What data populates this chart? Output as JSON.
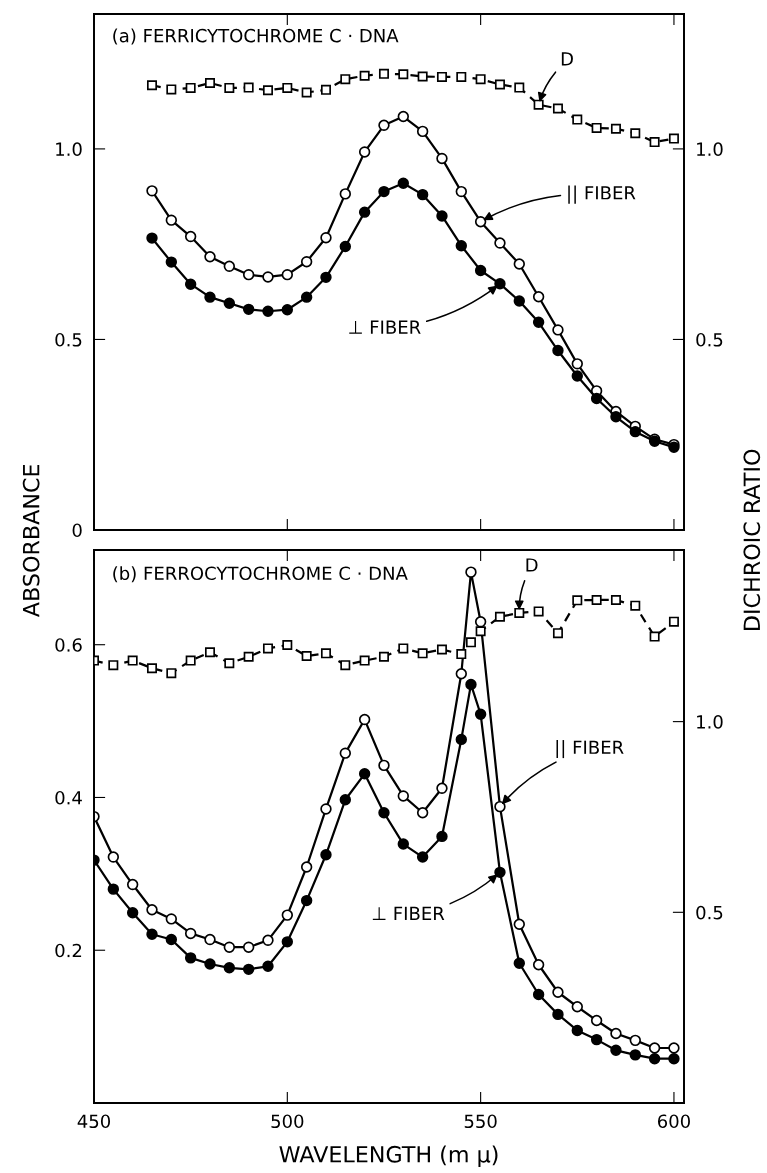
{
  "chart_data": [
    {
      "type": "line",
      "title": "(a) FERRICYTOCHROME C · DNA",
      "ylabel": "ABSORBANCE",
      "y2label": "DICHROIC RATIO",
      "x": [
        465,
        470,
        475,
        480,
        485,
        490,
        495,
        500,
        505,
        510,
        515,
        520,
        525,
        530,
        535,
        540,
        545,
        550,
        555,
        560,
        565,
        570,
        575,
        580,
        585,
        590,
        595,
        600
      ],
      "series": [
        {
          "name": "|| FIBER",
          "color": "#000000",
          "marker": "circle",
          "line_style": "solid",
          "values": [
            0.89,
            0.813,
            0.77,
            0.717,
            0.692,
            0.67,
            0.664,
            0.67,
            0.704,
            0.767,
            0.882,
            0.992,
            1.062,
            1.085,
            1.046,
            0.975,
            0.888,
            0.809,
            0.753,
            0.698,
            0.612,
            0.525,
            0.436,
            0.365,
            0.311,
            0.272,
            0.238,
            0.224
          ]
        },
        {
          "name": "⊥ FIBER",
          "color": "#000000",
          "marker": "circle",
          "line_style": "solid",
          "values": [
            0.766,
            0.703,
            0.645,
            0.611,
            0.595,
            0.579,
            0.574,
            0.578,
            0.611,
            0.663,
            0.744,
            0.834,
            0.888,
            0.91,
            0.88,
            0.824,
            0.746,
            0.681,
            0.646,
            0.601,
            0.545,
            0.471,
            0.404,
            0.345,
            0.297,
            0.258,
            0.233,
            0.217
          ]
        },
        {
          "name": "D",
          "color": "#000000",
          "marker": "square",
          "line_style": "dashed",
          "axis": "y2",
          "values": [
            1.167,
            1.156,
            1.16,
            1.173,
            1.16,
            1.161,
            1.154,
            1.16,
            1.148,
            1.155,
            1.183,
            1.192,
            1.197,
            1.196,
            1.19,
            1.189,
            1.189,
            1.183,
            1.169,
            1.161,
            1.116,
            1.106,
            1.077,
            1.055,
            1.053,
            1.041,
            1.018,
            1.027
          ]
        }
      ],
      "xlim": [
        450,
        602.6
      ],
      "xticks": [
        450,
        500,
        550,
        600
      ],
      "ylim": [
        0,
        1.354
      ],
      "yticks": [
        0,
        0.5,
        {
          "value": 1.0,
          "label": "1.0"
        }
      ],
      "y2lim": [
        0,
        1.354
      ],
      "y2ticks": [
        0.5,
        {
          "value": 1.0,
          "label": "1.0"
        }
      ],
      "tick_labels": "y",
      "grid": false,
      "legend": false
    },
    {
      "type": "line",
      "title": "(b) FERROCYTOCHROME C · DNA",
      "xlabel": "WAVELENGTH (m μ)",
      "series": [
        {
          "name": "|| FIBER",
          "color": "#000000",
          "marker": "circle",
          "line_style": "solid",
          "x": [
            450,
            455,
            460,
            465,
            470,
            475,
            480,
            485,
            490,
            495,
            500,
            505,
            510,
            515,
            520,
            525,
            530,
            535,
            540,
            545,
            547.5,
            550,
            555,
            560,
            565,
            570,
            575,
            580,
            585,
            590,
            595,
            600
          ],
          "values": [
            0.375,
            0.322,
            0.286,
            0.253,
            0.241,
            0.222,
            0.214,
            0.204,
            0.204,
            0.213,
            0.246,
            0.309,
            0.385,
            0.458,
            0.502,
            0.442,
            0.402,
            0.38,
            0.412,
            0.562,
            0.695,
            0.63,
            0.388,
            0.234,
            0.181,
            0.145,
            0.126,
            0.108,
            0.091,
            0.082,
            0.072,
            0.072
          ]
        },
        {
          "name": "⊥ FIBER",
          "color": "#000000",
          "marker": "circle",
          "line_style": "solid",
          "x": [
            450,
            455,
            460,
            465,
            470,
            475,
            480,
            485,
            490,
            495,
            500,
            505,
            510,
            515,
            520,
            525,
            530,
            535,
            540,
            545,
            547.5,
            550,
            555,
            560,
            565,
            570,
            575,
            580,
            585,
            590,
            595,
            600
          ],
          "values": [
            0.318,
            0.28,
            0.249,
            0.221,
            0.214,
            0.19,
            0.182,
            0.177,
            0.175,
            0.179,
            0.211,
            0.265,
            0.325,
            0.397,
            0.431,
            0.38,
            0.339,
            0.322,
            0.349,
            0.476,
            0.548,
            0.509,
            0.302,
            0.183,
            0.142,
            0.116,
            0.095,
            0.083,
            0.069,
            0.063,
            0.058,
            0.058
          ]
        },
        {
          "name": "D",
          "color": "#000000",
          "marker": "square",
          "line_style": "dashed",
          "axis": "y2",
          "x": [
            450,
            455,
            460,
            465,
            470,
            475,
            480,
            485,
            490,
            495,
            500,
            505,
            510,
            515,
            520,
            525,
            530,
            535,
            540,
            545,
            547.5,
            550,
            555,
            560,
            565,
            570,
            575,
            580,
            585,
            590,
            595,
            600
          ],
          "values": [
            1.16,
            1.148,
            1.16,
            1.14,
            1.127,
            1.16,
            1.182,
            1.153,
            1.17,
            1.192,
            1.201,
            1.172,
            1.179,
            1.148,
            1.16,
            1.17,
            1.192,
            1.179,
            1.189,
            1.177,
            1.208,
            1.237,
            1.275,
            1.285,
            1.289,
            1.232,
            1.318,
            1.319,
            1.319,
            1.304,
            1.223,
            1.262
          ]
        }
      ],
      "xlim": [
        450,
        602.6
      ],
      "xticks": [
        450,
        500,
        550,
        600
      ],
      "ylim": [
        0,
        0.724
      ],
      "yticks": [
        0.2,
        0.4,
        0.6
      ],
      "y2lim": [
        0,
        1.45
      ],
      "y2ticks": [
        0.5,
        {
          "value": 1.0,
          "label": "1.0"
        }
      ],
      "grid": false,
      "legend": false
    }
  ]
}
